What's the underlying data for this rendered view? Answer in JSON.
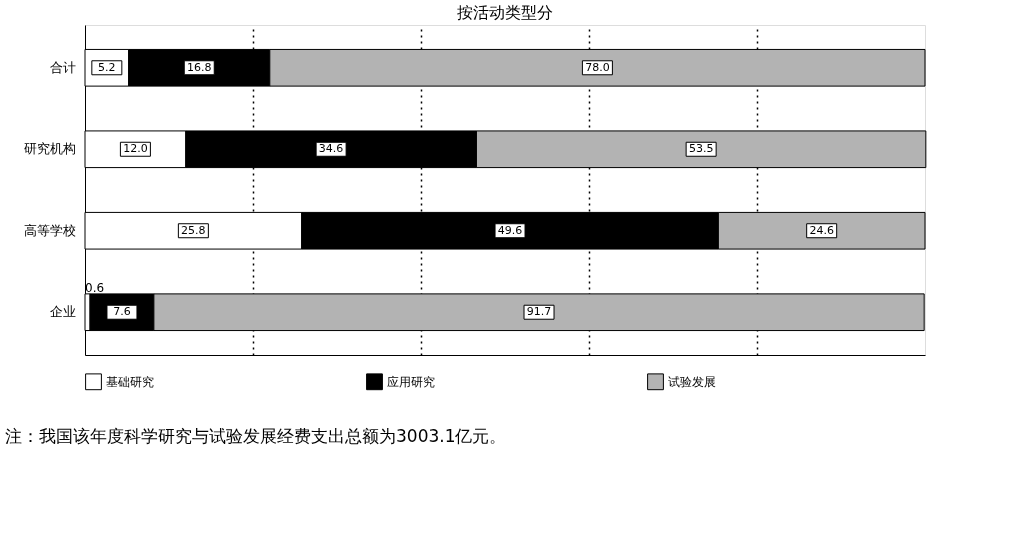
{
  "chart_data": {
    "type": "bar",
    "orientation": "horizontal",
    "stacked": true,
    "title": "按活动类型分",
    "categories": [
      "合计",
      "研究机构",
      "高等学校",
      "企业"
    ],
    "series": [
      {
        "name": "基础研究",
        "color": "#ffffff",
        "values": [
          5.2,
          12.0,
          25.8,
          0.6
        ],
        "value_labels": [
          "5.2",
          "12.0",
          "25.8",
          "0.6"
        ]
      },
      {
        "name": "应用研究",
        "color": "#000000",
        "values": [
          16.8,
          34.6,
          49.6,
          7.6
        ],
        "value_labels": [
          "16.8",
          "34.6",
          "49.6",
          "7.6"
        ]
      },
      {
        "name": "试验发展",
        "color": "#b3b3b3",
        "values": [
          78.0,
          53.5,
          24.6,
          91.7
        ],
        "value_labels": [
          "78.0",
          "53.5",
          "24.6",
          "91.7"
        ]
      }
    ],
    "xlim": [
      0,
      100
    ],
    "xticks": [
      {
        "value": 20,
        "label": null
      },
      {
        "value": 40,
        "label": null
      },
      {
        "value": 60,
        "label": null
      },
      {
        "value": 80,
        "label": null
      }
    ],
    "tick_labels": "y",
    "grid": "x",
    "line_style": "dotted",
    "legend": "bottom",
    "annotations": [
      "注：我国该年度科学研究与试验发展经费支出总额为3003.1亿元。"
    ]
  }
}
